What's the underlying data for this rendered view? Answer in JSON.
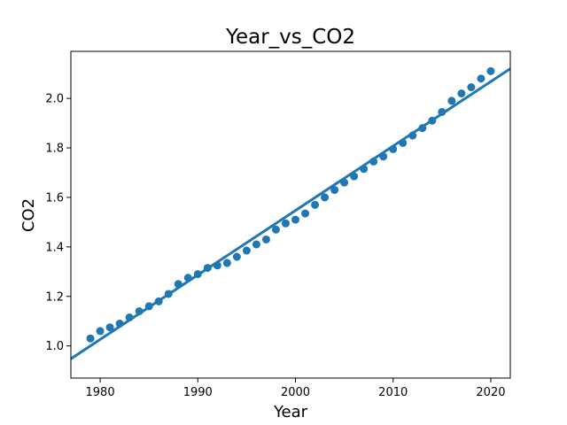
{
  "chart_data": {
    "type": "scatter",
    "title": "Year_vs_CO2",
    "xlabel": "Year",
    "ylabel": "CO2",
    "xlim": [
      1977,
      2022
    ],
    "ylim": [
      0.87,
      2.19
    ],
    "xticks": [
      1980,
      1990,
      2000,
      2010,
      2020
    ],
    "yticks": [
      1.0,
      1.2,
      1.4,
      1.6,
      1.8,
      2.0
    ],
    "ytick_labels": [
      "1.0",
      "1.2",
      "1.4",
      "1.6",
      "1.8",
      "2.0"
    ],
    "grid": false,
    "color": "#1f77b4",
    "x": [
      1979,
      1980,
      1981,
      1982,
      1983,
      1984,
      1985,
      1986,
      1987,
      1988,
      1989,
      1990,
      1991,
      1992,
      1993,
      1994,
      1995,
      1996,
      1997,
      1998,
      1999,
      2000,
      2001,
      2002,
      2003,
      2004,
      2005,
      2006,
      2007,
      2008,
      2009,
      2010,
      2011,
      2012,
      2013,
      2014,
      2015,
      2016,
      2017,
      2018,
      2019,
      2020
    ],
    "y": [
      1.03,
      1.06,
      1.075,
      1.09,
      1.115,
      1.14,
      1.16,
      1.18,
      1.21,
      1.25,
      1.275,
      1.29,
      1.315,
      1.325,
      1.335,
      1.36,
      1.385,
      1.41,
      1.43,
      1.47,
      1.495,
      1.51,
      1.535,
      1.57,
      1.6,
      1.63,
      1.66,
      1.685,
      1.715,
      1.745,
      1.765,
      1.795,
      1.82,
      1.85,
      1.88,
      1.91,
      1.945,
      1.99,
      2.02,
      2.045,
      2.08,
      2.11
    ],
    "regression_line": {
      "x": [
        1977,
        2022
      ],
      "y": [
        0.948,
        2.12
      ]
    }
  }
}
